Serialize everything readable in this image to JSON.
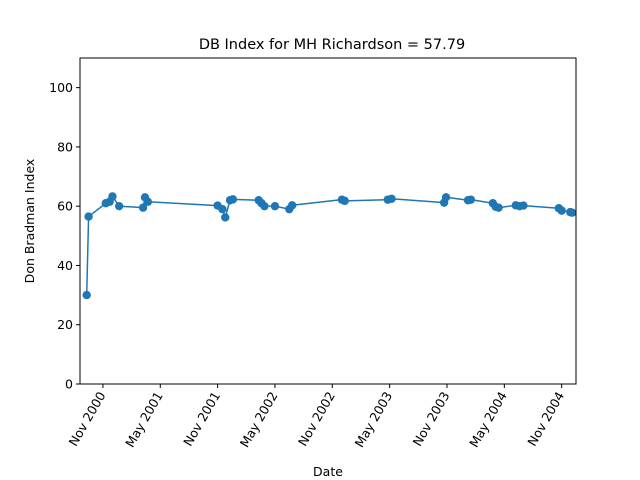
{
  "chart_data": {
    "type": "line",
    "title": "DB Index for MH Richardson = 57.79",
    "xlabel": "Date",
    "ylabel": "Don Bradman Index",
    "ylim": [
      0,
      110
    ],
    "yticks": [
      0,
      20,
      40,
      60,
      80,
      100
    ],
    "xlim": [
      -2.4,
      49.5
    ],
    "xticks": [
      {
        "label": "Nov 2000",
        "month": 0
      },
      {
        "label": "May 2001",
        "month": 6
      },
      {
        "label": "Nov 2001",
        "month": 12
      },
      {
        "label": "May 2002",
        "month": 18
      },
      {
        "label": "Nov 2002",
        "month": 24
      },
      {
        "label": "May 2003",
        "month": 30
      },
      {
        "label": "Nov 2003",
        "month": 36
      },
      {
        "label": "May 2004",
        "month": 42
      },
      {
        "label": "Nov 2004",
        "month": 48
      }
    ],
    "x_units": "months since Nov 2000",
    "grid": false,
    "series": [
      {
        "name": "DB Index",
        "color": "#1f77b4",
        "points": [
          {
            "x": -1.7,
            "y": 30.0
          },
          {
            "x": -1.5,
            "y": 56.5
          },
          {
            "x": 0.3,
            "y": 61.0
          },
          {
            "x": 0.7,
            "y": 61.5
          },
          {
            "x": 1.0,
            "y": 63.3
          },
          {
            "x": 1.7,
            "y": 60.0
          },
          {
            "x": 4.2,
            "y": 59.5
          },
          {
            "x": 4.4,
            "y": 63.0
          },
          {
            "x": 4.7,
            "y": 61.5
          },
          {
            "x": 12.0,
            "y": 60.2
          },
          {
            "x": 12.5,
            "y": 59.0
          },
          {
            "x": 12.8,
            "y": 56.2
          },
          {
            "x": 13.3,
            "y": 62.0
          },
          {
            "x": 13.6,
            "y": 62.3
          },
          {
            "x": 16.3,
            "y": 62.0
          },
          {
            "x": 16.6,
            "y": 61.0
          },
          {
            "x": 16.9,
            "y": 60.0
          },
          {
            "x": 18.0,
            "y": 60.0
          },
          {
            "x": 19.5,
            "y": 59.0
          },
          {
            "x": 19.8,
            "y": 60.3
          },
          {
            "x": 25.0,
            "y": 62.2
          },
          {
            "x": 25.3,
            "y": 61.8
          },
          {
            "x": 29.8,
            "y": 62.2
          },
          {
            "x": 30.2,
            "y": 62.5
          },
          {
            "x": 35.7,
            "y": 61.2
          },
          {
            "x": 35.9,
            "y": 63.0
          },
          {
            "x": 38.2,
            "y": 62.0
          },
          {
            "x": 38.5,
            "y": 62.2
          },
          {
            "x": 40.8,
            "y": 61.0
          },
          {
            "x": 41.1,
            "y": 59.8
          },
          {
            "x": 41.4,
            "y": 59.5
          },
          {
            "x": 43.2,
            "y": 60.3
          },
          {
            "x": 43.6,
            "y": 60.0
          },
          {
            "x": 44.0,
            "y": 60.2
          },
          {
            "x": 47.7,
            "y": 59.3
          },
          {
            "x": 48.0,
            "y": 58.5
          },
          {
            "x": 48.9,
            "y": 58.0
          },
          {
            "x": 49.1,
            "y": 57.8
          }
        ]
      }
    ]
  }
}
